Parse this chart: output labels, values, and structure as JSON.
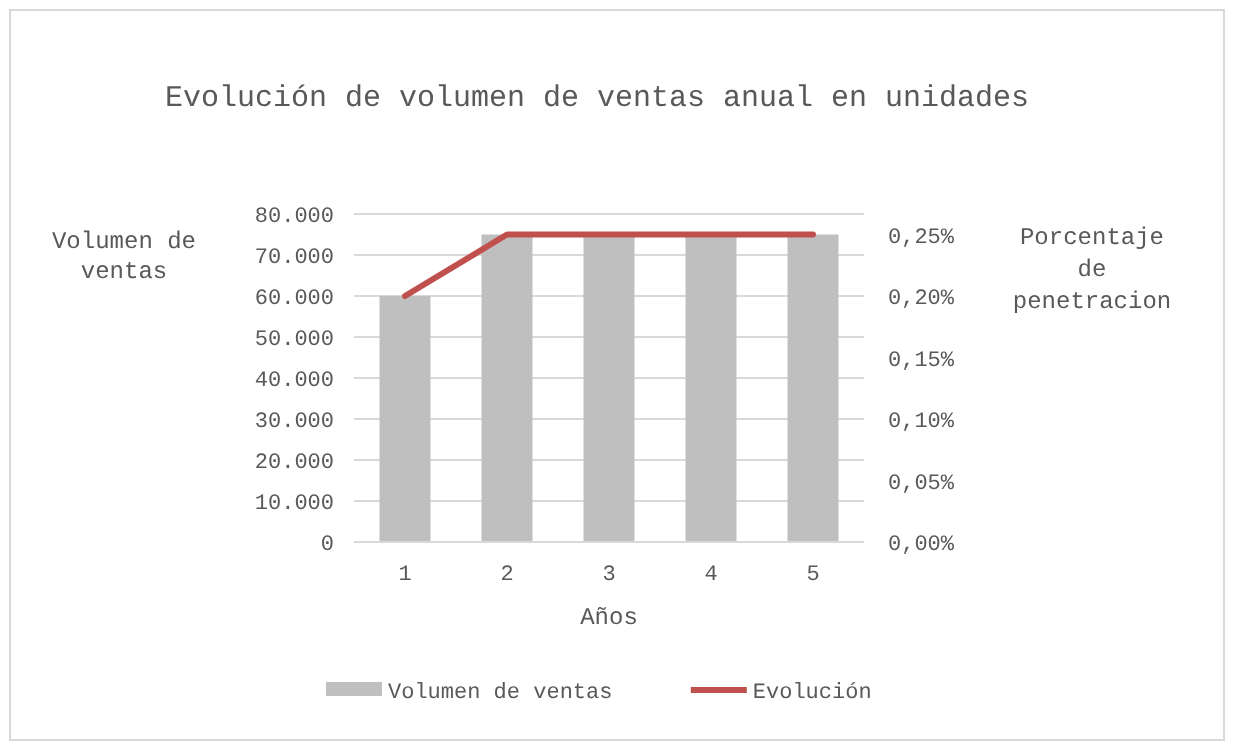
{
  "chart_data": {
    "type": "bar",
    "title": "Evolución de volumen de ventas anual en unidades",
    "xlabel": "Años",
    "ylabel": "Volumen de ventas",
    "y2label": "Porcentaje de penetracion",
    "categories": [
      "1",
      "2",
      "3",
      "4",
      "5"
    ],
    "series": [
      {
        "name": "Volumen de ventas",
        "color": "#bfbfbf",
        "values": [
          60000,
          75000,
          75000,
          75000,
          75000
        ]
      },
      {
        "name": "Evolución",
        "type": "line",
        "color": "#c0504d",
        "axis": "y2",
        "values": [
          0.2,
          0.25,
          0.25,
          0.25,
          0.25
        ]
      }
    ],
    "ylim": [
      0,
      80000
    ],
    "yticks": [
      {
        "value": 0,
        "label": "0"
      },
      {
        "value": 10000,
        "label": "10.000"
      },
      {
        "value": 20000,
        "label": "20.000"
      },
      {
        "value": 30000,
        "label": "30.000"
      },
      {
        "value": 40000,
        "label": "40.000"
      },
      {
        "value": 50000,
        "label": "50.000"
      },
      {
        "value": 60000,
        "label": "60.000"
      },
      {
        "value": 70000,
        "label": "70.000"
      },
      {
        "value": 80000,
        "label": "80.000"
      }
    ],
    "y2lim": [
      0,
      0.2667
    ],
    "y2ticks": [
      {
        "value": 0,
        "label": "0,00%"
      },
      {
        "value": 0.05,
        "label": "0,05%"
      },
      {
        "value": 0.1,
        "label": "0,10%"
      },
      {
        "value": 0.15,
        "label": "0,15%"
      },
      {
        "value": 0.2,
        "label": "0,20%"
      },
      {
        "value": 0.25,
        "label": "0,25%"
      }
    ],
    "grid": "y",
    "legend": "bottom"
  }
}
